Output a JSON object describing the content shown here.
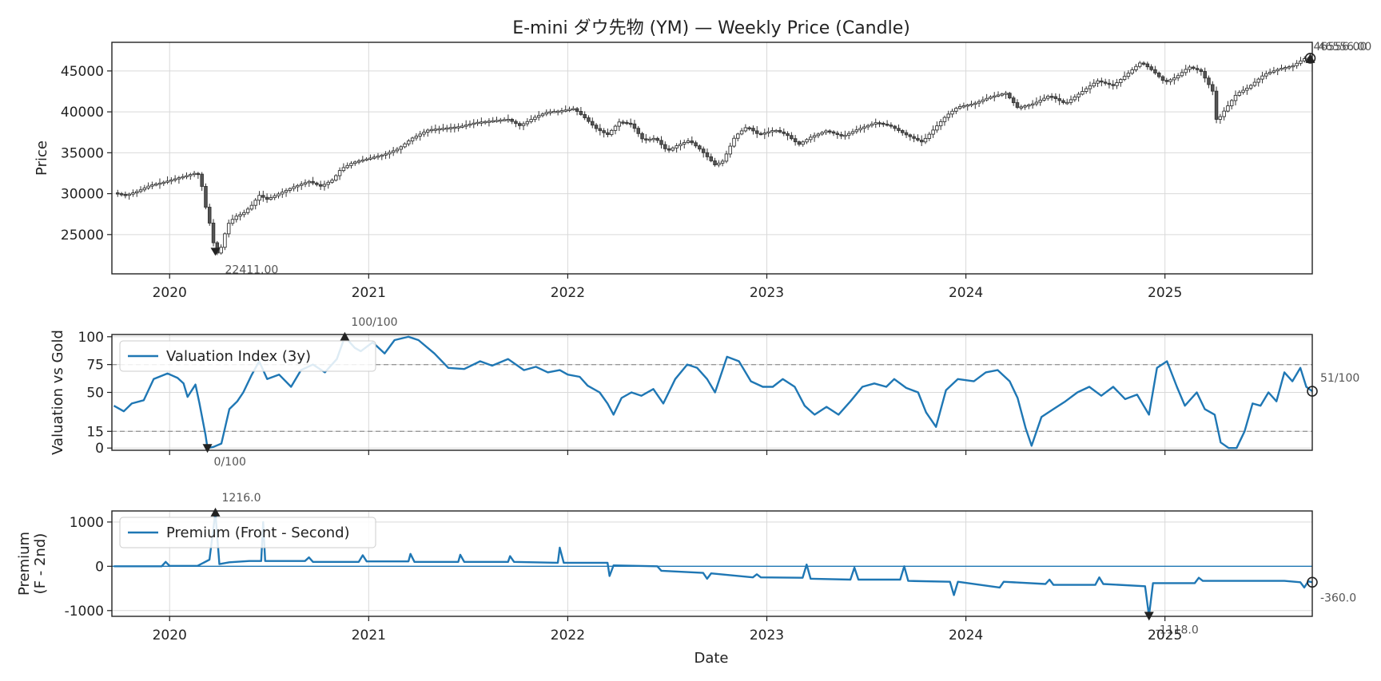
{
  "chart_data": [
    {
      "panel": "price",
      "type": "candlestick",
      "title": "E-mini ダウ先物 (YM) — Weekly Price (Candle)",
      "ylabel": "Price",
      "ylim": [
        20200,
        48500
      ],
      "yticks": [
        "25000",
        "30000",
        "35000",
        "40000",
        "45000"
      ],
      "xlim": [
        2019.71,
        2025.74
      ],
      "xticks": [
        "2020",
        "2021",
        "2022",
        "2023",
        "2024",
        "2025"
      ],
      "grid": true,
      "series_close": [
        [
          2019.72,
          30100
        ],
        [
          2019.78,
          29800
        ],
        [
          2019.84,
          30300
        ],
        [
          2019.9,
          31000
        ],
        [
          2019.97,
          31400
        ],
        [
          2020.04,
          31900
        ],
        [
          2020.1,
          32300
        ],
        [
          2020.14,
          32600
        ],
        [
          2020.16,
          31200
        ],
        [
          2020.18,
          28500
        ],
        [
          2020.2,
          26500
        ],
        [
          2020.22,
          24000
        ],
        [
          2020.23,
          22411
        ],
        [
          2020.26,
          23500
        ],
        [
          2020.29,
          26200
        ],
        [
          2020.33,
          27200
        ],
        [
          2020.37,
          27600
        ],
        [
          2020.41,
          28500
        ],
        [
          2020.45,
          29800
        ],
        [
          2020.49,
          29300
        ],
        [
          2020.55,
          30000
        ],
        [
          2020.62,
          30800
        ],
        [
          2020.7,
          31500
        ],
        [
          2020.76,
          30900
        ],
        [
          2020.82,
          31700
        ],
        [
          2020.86,
          33000
        ],
        [
          2020.92,
          33800
        ],
        [
          2021.0,
          34300
        ],
        [
          2021.08,
          34800
        ],
        [
          2021.15,
          35500
        ],
        [
          2021.22,
          36800
        ],
        [
          2021.3,
          37800
        ],
        [
          2021.38,
          38000
        ],
        [
          2021.46,
          38200
        ],
        [
          2021.54,
          38700
        ],
        [
          2021.62,
          38900
        ],
        [
          2021.7,
          39100
        ],
        [
          2021.76,
          38300
        ],
        [
          2021.84,
          39400
        ],
        [
          2021.9,
          40000
        ],
        [
          2021.96,
          40100
        ],
        [
          2022.03,
          40400
        ],
        [
          2022.08,
          39400
        ],
        [
          2022.14,
          38000
        ],
        [
          2022.2,
          37200
        ],
        [
          2022.26,
          38800
        ],
        [
          2022.32,
          38500
        ],
        [
          2022.38,
          36500
        ],
        [
          2022.44,
          36800
        ],
        [
          2022.5,
          35200
        ],
        [
          2022.55,
          35900
        ],
        [
          2022.61,
          36500
        ],
        [
          2022.67,
          35300
        ],
        [
          2022.74,
          33500
        ],
        [
          2022.78,
          34000
        ],
        [
          2022.84,
          37000
        ],
        [
          2022.9,
          38200
        ],
        [
          2022.96,
          37200
        ],
        [
          2023.04,
          37800
        ],
        [
          2023.1,
          37200
        ],
        [
          2023.16,
          36000
        ],
        [
          2023.22,
          36900
        ],
        [
          2023.3,
          37700
        ],
        [
          2023.38,
          37000
        ],
        [
          2023.46,
          37900
        ],
        [
          2023.55,
          38700
        ],
        [
          2023.62,
          38300
        ],
        [
          2023.7,
          37200
        ],
        [
          2023.78,
          36300
        ],
        [
          2023.84,
          37900
        ],
        [
          2023.9,
          39500
        ],
        [
          2023.96,
          40600
        ],
        [
          2024.04,
          41000
        ],
        [
          2024.12,
          41800
        ],
        [
          2024.2,
          42300
        ],
        [
          2024.26,
          40500
        ],
        [
          2024.34,
          41000
        ],
        [
          2024.42,
          42000
        ],
        [
          2024.5,
          41000
        ],
        [
          2024.58,
          42400
        ],
        [
          2024.66,
          43800
        ],
        [
          2024.74,
          43200
        ],
        [
          2024.82,
          44800
        ],
        [
          2024.88,
          46100
        ],
        [
          2024.94,
          45000
        ],
        [
          2025.0,
          43600
        ],
        [
          2025.06,
          44300
        ],
        [
          2025.12,
          45500
        ],
        [
          2025.18,
          45000
        ],
        [
          2025.24,
          42500
        ],
        [
          2025.26,
          38800
        ],
        [
          2025.3,
          40200
        ],
        [
          2025.36,
          42200
        ],
        [
          2025.42,
          43000
        ],
        [
          2025.5,
          44600
        ],
        [
          2025.58,
          45300
        ],
        [
          2025.64,
          45600
        ],
        [
          2025.7,
          46500
        ],
        [
          2025.73,
          46556
        ]
      ],
      "annotations": [
        {
          "text": "22411.00",
          "x": 2020.23,
          "y": 22411
        },
        {
          "text": "46556.00",
          "x": 2025.73,
          "y": 46556
        },
        {
          "text": "46556.00",
          "x": 2025.73,
          "y": 46556
        }
      ]
    },
    {
      "panel": "valuation",
      "type": "line",
      "ylabel": "Valuation vs Gold",
      "ylim": [
        -2,
        102
      ],
      "yticks": [
        "0",
        "15",
        "50",
        "75",
        "100"
      ],
      "hlines": [
        15,
        75
      ],
      "legend": "Valuation Index (3y)",
      "legend_loc": "upper-left",
      "color": "#1f77b4",
      "series": [
        [
          2019.72,
          38
        ],
        [
          2019.77,
          33
        ],
        [
          2019.81,
          40
        ],
        [
          2019.87,
          43
        ],
        [
          2019.92,
          62
        ],
        [
          2019.99,
          67
        ],
        [
          2020.04,
          63
        ],
        [
          2020.07,
          58
        ],
        [
          2020.09,
          46
        ],
        [
          2020.13,
          57
        ],
        [
          2020.15,
          40
        ],
        [
          2020.18,
          12
        ],
        [
          2020.19,
          0
        ],
        [
          2020.22,
          1
        ],
        [
          2020.26,
          4
        ],
        [
          2020.3,
          35
        ],
        [
          2020.34,
          42
        ],
        [
          2020.37,
          50
        ],
        [
          2020.41,
          65
        ],
        [
          2020.45,
          78
        ],
        [
          2020.49,
          62
        ],
        [
          2020.55,
          66
        ],
        [
          2020.61,
          55
        ],
        [
          2020.66,
          70
        ],
        [
          2020.72,
          75
        ],
        [
          2020.78,
          68
        ],
        [
          2020.84,
          80
        ],
        [
          2020.88,
          100
        ],
        [
          2020.93,
          90
        ],
        [
          2020.96,
          87
        ],
        [
          2021.02,
          95
        ],
        [
          2021.08,
          85
        ],
        [
          2021.13,
          97
        ],
        [
          2021.2,
          100
        ],
        [
          2021.25,
          97
        ],
        [
          2021.33,
          85
        ],
        [
          2021.4,
          72
        ],
        [
          2021.48,
          71
        ],
        [
          2021.56,
          78
        ],
        [
          2021.62,
          74
        ],
        [
          2021.7,
          80
        ],
        [
          2021.78,
          70
        ],
        [
          2021.84,
          73
        ],
        [
          2021.9,
          68
        ],
        [
          2021.96,
          70
        ],
        [
          2022.0,
          66
        ],
        [
          2022.06,
          64
        ],
        [
          2022.1,
          56
        ],
        [
          2022.16,
          50
        ],
        [
          2022.2,
          40
        ],
        [
          2022.23,
          30
        ],
        [
          2022.27,
          45
        ],
        [
          2022.32,
          50
        ],
        [
          2022.37,
          47
        ],
        [
          2022.43,
          53
        ],
        [
          2022.48,
          40
        ],
        [
          2022.54,
          62
        ],
        [
          2022.6,
          75
        ],
        [
          2022.65,
          72
        ],
        [
          2022.7,
          62
        ],
        [
          2022.74,
          50
        ],
        [
          2022.8,
          82
        ],
        [
          2022.86,
          78
        ],
        [
          2022.92,
          60
        ],
        [
          2022.98,
          55
        ],
        [
          2023.03,
          55
        ],
        [
          2023.08,
          62
        ],
        [
          2023.14,
          55
        ],
        [
          2023.19,
          38
        ],
        [
          2023.24,
          30
        ],
        [
          2023.3,
          37
        ],
        [
          2023.36,
          30
        ],
        [
          2023.42,
          42
        ],
        [
          2023.48,
          55
        ],
        [
          2023.54,
          58
        ],
        [
          2023.6,
          55
        ],
        [
          2023.64,
          62
        ],
        [
          2023.7,
          54
        ],
        [
          2023.76,
          50
        ],
        [
          2023.8,
          32
        ],
        [
          2023.85,
          19
        ],
        [
          2023.9,
          52
        ],
        [
          2023.96,
          62
        ],
        [
          2024.04,
          60
        ],
        [
          2024.1,
          68
        ],
        [
          2024.16,
          70
        ],
        [
          2024.22,
          60
        ],
        [
          2024.26,
          45
        ],
        [
          2024.3,
          18
        ],
        [
          2024.33,
          2
        ],
        [
          2024.38,
          28
        ],
        [
          2024.44,
          35
        ],
        [
          2024.5,
          42
        ],
        [
          2024.56,
          50
        ],
        [
          2024.62,
          55
        ],
        [
          2024.68,
          47
        ],
        [
          2024.74,
          55
        ],
        [
          2024.8,
          44
        ],
        [
          2024.86,
          48
        ],
        [
          2024.92,
          30
        ],
        [
          2024.96,
          72
        ],
        [
          2025.01,
          78
        ],
        [
          2025.06,
          55
        ],
        [
          2025.1,
          38
        ],
        [
          2025.16,
          50
        ],
        [
          2025.2,
          35
        ],
        [
          2025.25,
          30
        ],
        [
          2025.28,
          5
        ],
        [
          2025.32,
          0
        ],
        [
          2025.36,
          0
        ],
        [
          2025.4,
          15
        ],
        [
          2025.44,
          40
        ],
        [
          2025.48,
          38
        ],
        [
          2025.52,
          50
        ],
        [
          2025.56,
          42
        ],
        [
          2025.6,
          68
        ],
        [
          2025.64,
          60
        ],
        [
          2025.68,
          72
        ],
        [
          2025.71,
          55
        ],
        [
          2025.74,
          51
        ]
      ],
      "annotations": [
        {
          "text": "100/100",
          "x": 2020.88,
          "y": 100
        },
        {
          "text": "0/100",
          "x": 2020.19,
          "y": 0
        },
        {
          "text": "51/100",
          "x": 2025.74,
          "y": 51
        }
      ]
    },
    {
      "panel": "premium",
      "type": "line",
      "ylabel": "Premium",
      "ylabel2": "(F - 2nd)",
      "xlabel": "Date",
      "ylim": [
        -1130,
        1250
      ],
      "yticks": [
        "1000",
        "0",
        "-1000"
      ],
      "legend": "Premium (Front - Second)",
      "legend_loc": "upper-left",
      "color": "#1f77b4",
      "series": [
        [
          2019.72,
          0
        ],
        [
          2019.96,
          0
        ],
        [
          2019.98,
          100
        ],
        [
          2020.0,
          10
        ],
        [
          2020.14,
          10
        ],
        [
          2020.2,
          150
        ],
        [
          2020.23,
          1216
        ],
        [
          2020.25,
          50
        ],
        [
          2020.3,
          90
        ],
        [
          2020.4,
          120
        ],
        [
          2020.46,
          120
        ],
        [
          2020.47,
          1000
        ],
        [
          2020.48,
          120
        ],
        [
          2020.68,
          120
        ],
        [
          2020.7,
          200
        ],
        [
          2020.72,
          100
        ],
        [
          2020.95,
          100
        ],
        [
          2020.97,
          250
        ],
        [
          2020.99,
          110
        ],
        [
          2021.2,
          110
        ],
        [
          2021.21,
          280
        ],
        [
          2021.23,
          100
        ],
        [
          2021.45,
          100
        ],
        [
          2021.46,
          260
        ],
        [
          2021.48,
          100
        ],
        [
          2021.7,
          100
        ],
        [
          2021.71,
          230
        ],
        [
          2021.73,
          100
        ],
        [
          2021.95,
          80
        ],
        [
          2021.96,
          420
        ],
        [
          2021.98,
          80
        ],
        [
          2022.2,
          80
        ],
        [
          2022.21,
          -220
        ],
        [
          2022.23,
          20
        ],
        [
          2022.45,
          0
        ],
        [
          2022.47,
          -100
        ],
        [
          2022.68,
          -150
        ],
        [
          2022.7,
          -280
        ],
        [
          2022.72,
          -160
        ],
        [
          2022.93,
          -250
        ],
        [
          2022.95,
          -180
        ],
        [
          2022.97,
          -250
        ],
        [
          2023.18,
          -260
        ],
        [
          2023.2,
          40
        ],
        [
          2023.22,
          -280
        ],
        [
          2023.42,
          -300
        ],
        [
          2023.44,
          -30
        ],
        [
          2023.46,
          -300
        ],
        [
          2023.67,
          -300
        ],
        [
          2023.69,
          0
        ],
        [
          2023.71,
          -330
        ],
        [
          2023.92,
          -350
        ],
        [
          2023.94,
          -650
        ],
        [
          2023.96,
          -350
        ],
        [
          2024.17,
          -480
        ],
        [
          2024.19,
          -350
        ],
        [
          2024.4,
          -400
        ],
        [
          2024.42,
          -300
        ],
        [
          2024.44,
          -420
        ],
        [
          2024.65,
          -420
        ],
        [
          2024.67,
          -250
        ],
        [
          2024.69,
          -400
        ],
        [
          2024.9,
          -450
        ],
        [
          2024.92,
          -1118
        ],
        [
          2024.94,
          -380
        ],
        [
          2025.15,
          -380
        ],
        [
          2025.17,
          -260
        ],
        [
          2025.19,
          -330
        ],
        [
          2025.6,
          -330
        ],
        [
          2025.68,
          -360
        ],
        [
          2025.7,
          -480
        ],
        [
          2025.72,
          -340
        ],
        [
          2025.74,
          -360
        ]
      ],
      "annotations": [
        {
          "text": "1216.0",
          "x": 2020.23,
          "y": 1216
        },
        {
          "text": "-1118.0",
          "x": 2024.92,
          "y": -1118
        },
        {
          "text": "-360.0",
          "x": 2025.74,
          "y": -360
        }
      ]
    }
  ]
}
